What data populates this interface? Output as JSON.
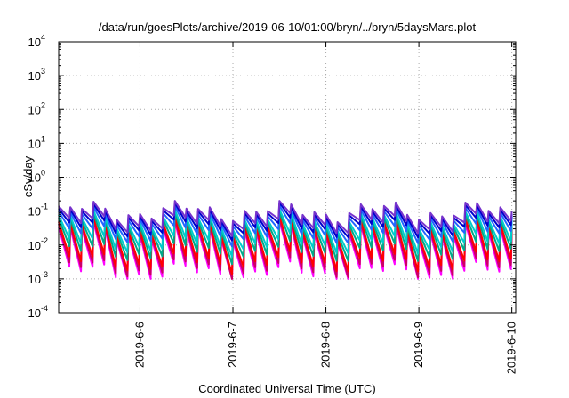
{
  "chart_data": {
    "type": "line",
    "title": "/data/run/goesPlots/archive/2019-06-10/01:00/bryn/../bryn/5daysMars.plot",
    "xlabel": "Coordinated Universal Time (UTC)",
    "ylabel": "cSv/day",
    "y_scale": "log",
    "ylim_exponents": [
      -4,
      4
    ],
    "y_tick_labels": [
      {
        "base": "10",
        "exp": "-4"
      },
      {
        "base": "10",
        "exp": "-3"
      },
      {
        "base": "10",
        "exp": "-2"
      },
      {
        "base": "10",
        "exp": "-1"
      },
      {
        "base": "10",
        "exp": "0"
      },
      {
        "base": "10",
        "exp": "1"
      },
      {
        "base": "10",
        "exp": "2"
      },
      {
        "base": "10",
        "exp": "3"
      },
      {
        "base": "10",
        "exp": "4"
      }
    ],
    "x_start": "2019-06-05 03:00",
    "x_end": "2019-06-10 01:00",
    "x_ticks": [
      "2019-6-6",
      "2019-6-7",
      "2019-6-8",
      "2019-6-9",
      "2019-6-10"
    ],
    "grid": true,
    "legend": "none",
    "sawtooth_period_hours": 3,
    "series": [
      {
        "color": "#ff00ff",
        "peak": 0.025,
        "trough": 0.0015
      },
      {
        "color": "#cc0066",
        "peak": 0.03,
        "trough": 0.002
      },
      {
        "color": "#ff0000",
        "peak": 0.035,
        "trough": 0.003
      },
      {
        "color": "#00aa88",
        "peak": 0.045,
        "trough": 0.006
      },
      {
        "color": "#00cccc",
        "peak": 0.055,
        "trough": 0.01
      },
      {
        "color": "#2266ff",
        "peak": 0.07,
        "trough": 0.02
      },
      {
        "color": "#0000cc",
        "peak": 0.085,
        "trough": 0.03
      },
      {
        "color": "#7733cc",
        "peak": 0.1,
        "trough": 0.04
      }
    ]
  }
}
